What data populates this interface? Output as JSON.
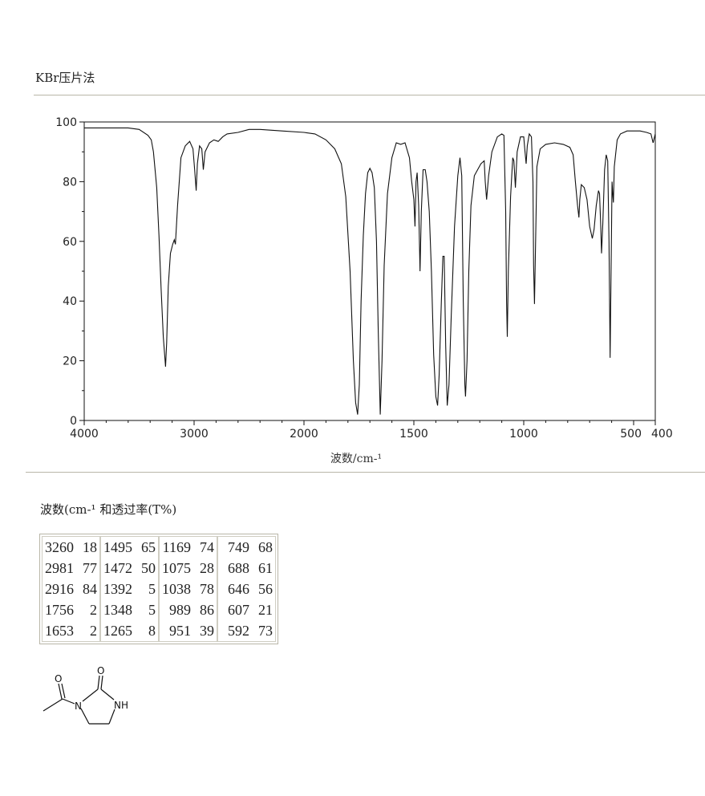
{
  "header": {
    "method": "KBr压片法"
  },
  "chart_data": {
    "type": "line",
    "title": "",
    "xlabel": "波数/cm-¹",
    "ylabel": "",
    "xlim": [
      4000,
      400
    ],
    "ylim": [
      0,
      100
    ],
    "x_ticks": [
      4000,
      3000,
      2000,
      1500,
      1000,
      500,
      400
    ],
    "x_tick_labels": [
      "4000",
      "3000",
      "2000",
      "1500",
      "1000",
      "500",
      "400"
    ],
    "y_ticks": [
      0,
      20,
      40,
      60,
      80,
      100
    ],
    "y_tick_labels": [
      "0",
      "20",
      "40",
      "60",
      "80",
      "100"
    ],
    "x_axis_scale": "linear above 2000 cm-1, expanded below 2000 cm-1",
    "grid": false,
    "series": [
      {
        "name": "",
        "points": [
          [
            4000,
            98
          ],
          [
            3800,
            98
          ],
          [
            3600,
            98
          ],
          [
            3500,
            97.5
          ],
          [
            3420,
            95.5
          ],
          [
            3390,
            94
          ],
          [
            3370,
            90
          ],
          [
            3340,
            78
          ],
          [
            3320,
            62
          ],
          [
            3300,
            44
          ],
          [
            3280,
            28
          ],
          [
            3260,
            18
          ],
          [
            3250,
            26
          ],
          [
            3235,
            45
          ],
          [
            3215,
            56
          ],
          [
            3195,
            59
          ],
          [
            3180,
            60.5
          ],
          [
            3170,
            59
          ],
          [
            3150,
            72
          ],
          [
            3120,
            88
          ],
          [
            3080,
            92
          ],
          [
            3040,
            93.5
          ],
          [
            3010,
            91
          ],
          [
            2995,
            84
          ],
          [
            2981,
            77
          ],
          [
            2970,
            86
          ],
          [
            2950,
            92
          ],
          [
            2930,
            91
          ],
          [
            2916,
            84
          ],
          [
            2900,
            90
          ],
          [
            2860,
            93
          ],
          [
            2820,
            94
          ],
          [
            2780,
            93.5
          ],
          [
            2740,
            95
          ],
          [
            2700,
            96
          ],
          [
            2600,
            96.5
          ],
          [
            2500,
            97.5
          ],
          [
            2400,
            97.5
          ],
          [
            2200,
            97
          ],
          [
            2000,
            96.5
          ],
          [
            1950,
            96
          ],
          [
            1900,
            94
          ],
          [
            1860,
            91
          ],
          [
            1830,
            86
          ],
          [
            1810,
            75
          ],
          [
            1790,
            50
          ],
          [
            1775,
            20
          ],
          [
            1765,
            6
          ],
          [
            1756,
            2
          ],
          [
            1748,
            12
          ],
          [
            1740,
            40
          ],
          [
            1730,
            62
          ],
          [
            1720,
            76
          ],
          [
            1710,
            83
          ],
          [
            1700,
            84.5
          ],
          [
            1690,
            83
          ],
          [
            1680,
            78
          ],
          [
            1670,
            60
          ],
          [
            1662,
            30
          ],
          [
            1653,
            2
          ],
          [
            1645,
            20
          ],
          [
            1635,
            52
          ],
          [
            1620,
            76
          ],
          [
            1600,
            88
          ],
          [
            1580,
            93
          ],
          [
            1560,
            92.5
          ],
          [
            1540,
            93
          ],
          [
            1520,
            88
          ],
          [
            1510,
            80
          ],
          [
            1500,
            74
          ],
          [
            1495,
            65
          ],
          [
            1490,
            80
          ],
          [
            1485,
            83
          ],
          [
            1478,
            72
          ],
          [
            1472,
            50
          ],
          [
            1466,
            70
          ],
          [
            1458,
            84
          ],
          [
            1448,
            84
          ],
          [
            1440,
            80
          ],
          [
            1430,
            70
          ],
          [
            1420,
            50
          ],
          [
            1410,
            22
          ],
          [
            1400,
            8
          ],
          [
            1392,
            5
          ],
          [
            1385,
            15
          ],
          [
            1375,
            40
          ],
          [
            1368,
            55
          ],
          [
            1362,
            55
          ],
          [
            1355,
            25
          ],
          [
            1348,
            5
          ],
          [
            1340,
            12
          ],
          [
            1330,
            35
          ],
          [
            1315,
            65
          ],
          [
            1300,
            82
          ],
          [
            1290,
            88
          ],
          [
            1282,
            82
          ],
          [
            1275,
            40
          ],
          [
            1268,
            12
          ],
          [
            1265,
            8
          ],
          [
            1258,
            20
          ],
          [
            1250,
            50
          ],
          [
            1240,
            72
          ],
          [
            1225,
            82
          ],
          [
            1210,
            84
          ],
          [
            1195,
            86
          ],
          [
            1180,
            87
          ],
          [
            1175,
            80
          ],
          [
            1169,
            74
          ],
          [
            1160,
            82
          ],
          [
            1145,
            90
          ],
          [
            1120,
            95
          ],
          [
            1100,
            96
          ],
          [
            1090,
            95.5
          ],
          [
            1082,
            70
          ],
          [
            1078,
            40
          ],
          [
            1075,
            28
          ],
          [
            1070,
            50
          ],
          [
            1060,
            75
          ],
          [
            1050,
            88
          ],
          [
            1045,
            87
          ],
          [
            1038,
            78
          ],
          [
            1030,
            90
          ],
          [
            1015,
            95
          ],
          [
            1000,
            95
          ],
          [
            994,
            90
          ],
          [
            989,
            86
          ],
          [
            984,
            92
          ],
          [
            975,
            96
          ],
          [
            965,
            95
          ],
          [
            958,
            80
          ],
          [
            955,
            52
          ],
          [
            951,
            39
          ],
          [
            946,
            60
          ],
          [
            940,
            85
          ],
          [
            925,
            91
          ],
          [
            900,
            92.5
          ],
          [
            860,
            93
          ],
          [
            820,
            92.5
          ],
          [
            790,
            91.5
          ],
          [
            775,
            89
          ],
          [
            765,
            80
          ],
          [
            755,
            72
          ],
          [
            749,
            68
          ],
          [
            745,
            74
          ],
          [
            738,
            79
          ],
          [
            725,
            78
          ],
          [
            712,
            74
          ],
          [
            700,
            65
          ],
          [
            688,
            61
          ],
          [
            680,
            64
          ],
          [
            670,
            72
          ],
          [
            660,
            77
          ],
          [
            655,
            76
          ],
          [
            650,
            66
          ],
          [
            646,
            56
          ],
          [
            640,
            66
          ],
          [
            632,
            84
          ],
          [
            625,
            89
          ],
          [
            618,
            87
          ],
          [
            612,
            60
          ],
          [
            607,
            21
          ],
          [
            602,
            55
          ],
          [
            598,
            80
          ],
          [
            594,
            75
          ],
          [
            592,
            73
          ],
          [
            588,
            85
          ],
          [
            575,
            94
          ],
          [
            560,
            96
          ],
          [
            530,
            97
          ],
          [
            500,
            97
          ],
          [
            470,
            97
          ],
          [
            440,
            96.5
          ],
          [
            420,
            96
          ],
          [
            410,
            93
          ],
          [
            400,
            96
          ]
        ]
      }
    ]
  },
  "peaks": {
    "caption": "波数(cm-¹  和透过率(T%)",
    "columns": [
      [
        {
          "wavenumber": "3260",
          "transmittance": "18"
        },
        {
          "wavenumber": "2981",
          "transmittance": "77"
        },
        {
          "wavenumber": "2916",
          "transmittance": "84"
        },
        {
          "wavenumber": "1756",
          "transmittance": "2"
        },
        {
          "wavenumber": "1653",
          "transmittance": "2"
        }
      ],
      [
        {
          "wavenumber": "1495",
          "transmittance": "65"
        },
        {
          "wavenumber": "1472",
          "transmittance": "50"
        },
        {
          "wavenumber": "1392",
          "transmittance": "5"
        },
        {
          "wavenumber": "1348",
          "transmittance": "5"
        },
        {
          "wavenumber": "1265",
          "transmittance": "8"
        }
      ],
      [
        {
          "wavenumber": "1169",
          "transmittance": "74"
        },
        {
          "wavenumber": "1075",
          "transmittance": "28"
        },
        {
          "wavenumber": "1038",
          "transmittance": "78"
        },
        {
          "wavenumber": "989",
          "transmittance": "86"
        },
        {
          "wavenumber": "951",
          "transmittance": "39"
        }
      ],
      [
        {
          "wavenumber": "749",
          "transmittance": "68"
        },
        {
          "wavenumber": "688",
          "transmittance": "61"
        },
        {
          "wavenumber": "646",
          "transmittance": "56"
        },
        {
          "wavenumber": "607",
          "transmittance": "21"
        },
        {
          "wavenumber": "592",
          "transmittance": "73"
        }
      ]
    ]
  },
  "structure": {
    "atom_labels": {
      "oxygen_1": "O",
      "oxygen_2": "O",
      "nitrogen": "N",
      "nh": "NH"
    }
  }
}
